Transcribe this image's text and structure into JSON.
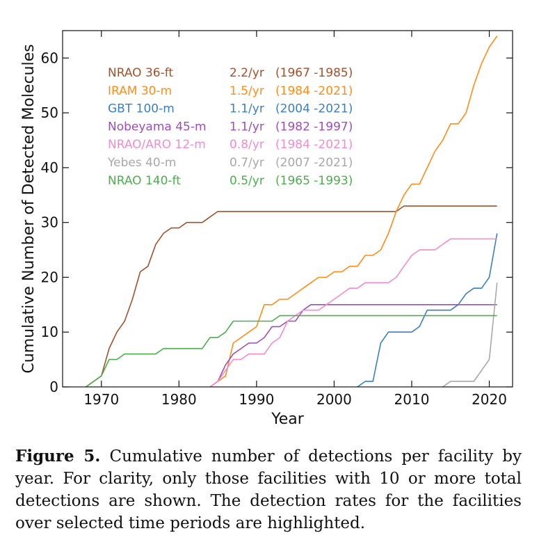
{
  "chart_data": {
    "type": "line",
    "xlabel": "Year",
    "ylabel": "Cumulative Number of Detected Molecules",
    "xlim": [
      1965,
      2023
    ],
    "ylim": [
      0,
      65
    ],
    "xticks": [
      1970,
      1980,
      1990,
      2000,
      2010,
      2020
    ],
    "yticks": [
      0,
      10,
      20,
      30,
      40,
      50,
      60
    ],
    "xtick_labels": [
      "1970",
      "1980",
      "1990",
      "2000",
      "2010",
      "2020"
    ],
    "ytick_labels": [
      "0",
      "10",
      "20",
      "30",
      "40",
      "50",
      "60"
    ],
    "grid": false,
    "legend_position": "top-left",
    "series": [
      {
        "name": "NRAO 36-ft",
        "rate": "2.2/yr",
        "period": "(1967 -1985)",
        "color": "#a0522d",
        "points": [
          [
            1968,
            0
          ],
          [
            1970,
            2
          ],
          [
            1971,
            7
          ],
          [
            1972,
            10
          ],
          [
            1973,
            12
          ],
          [
            1974,
            16
          ],
          [
            1975,
            21
          ],
          [
            1976,
            22
          ],
          [
            1977,
            26
          ],
          [
            1978,
            28
          ],
          [
            1979,
            29
          ],
          [
            1980,
            29
          ],
          [
            1981,
            30
          ],
          [
            1982,
            30
          ],
          [
            1983,
            30
          ],
          [
            1984,
            31
          ],
          [
            1985,
            32
          ],
          [
            2000,
            32
          ],
          [
            2008,
            32
          ],
          [
            2009,
            33
          ],
          [
            2021,
            33
          ]
        ]
      },
      {
        "name": "IRAM 30-m",
        "rate": "1.5/yr",
        "period": "(1984 -2021)",
        "color": "#ff8c1a",
        "points": [
          [
            1984,
            0
          ],
          [
            1985,
            1
          ],
          [
            1986,
            2
          ],
          [
            1987,
            8
          ],
          [
            1988,
            9
          ],
          [
            1989,
            10
          ],
          [
            1990,
            11
          ],
          [
            1991,
            15
          ],
          [
            1992,
            15
          ],
          [
            1993,
            16
          ],
          [
            1994,
            16
          ],
          [
            1995,
            17
          ],
          [
            1996,
            18
          ],
          [
            1997,
            19
          ],
          [
            1998,
            20
          ],
          [
            1999,
            20
          ],
          [
            2000,
            21
          ],
          [
            2001,
            21
          ],
          [
            2002,
            22
          ],
          [
            2003,
            22
          ],
          [
            2004,
            24
          ],
          [
            2005,
            24
          ],
          [
            2006,
            25
          ],
          [
            2007,
            28
          ],
          [
            2008,
            32
          ],
          [
            2009,
            35
          ],
          [
            2010,
            37
          ],
          [
            2011,
            37
          ],
          [
            2012,
            40
          ],
          [
            2013,
            43
          ],
          [
            2014,
            45
          ],
          [
            2015,
            48
          ],
          [
            2016,
            48
          ],
          [
            2017,
            50
          ],
          [
            2018,
            55
          ],
          [
            2019,
            59
          ],
          [
            2020,
            62
          ],
          [
            2021,
            64
          ]
        ]
      },
      {
        "name": "GBT 100-m",
        "rate": "1.1/yr",
        "period": "(2004 -2021)",
        "color": "#3a7fc1",
        "points": [
          [
            2003,
            0
          ],
          [
            2004,
            1
          ],
          [
            2005,
            1
          ],
          [
            2006,
            8
          ],
          [
            2007,
            10
          ],
          [
            2008,
            10
          ],
          [
            2009,
            10
          ],
          [
            2010,
            10
          ],
          [
            2011,
            11
          ],
          [
            2012,
            14
          ],
          [
            2013,
            14
          ],
          [
            2014,
            14
          ],
          [
            2015,
            14
          ],
          [
            2016,
            15
          ],
          [
            2017,
            17
          ],
          [
            2018,
            18
          ],
          [
            2019,
            18
          ],
          [
            2020,
            20
          ],
          [
            2021,
            28
          ]
        ]
      },
      {
        "name": "Nobeyama 45-m",
        "rate": "1.1/yr",
        "period": "(1982 -1997)",
        "color": "#9b4fb8",
        "points": [
          [
            1984,
            0
          ],
          [
            1985,
            1
          ],
          [
            1986,
            4
          ],
          [
            1987,
            6
          ],
          [
            1988,
            7
          ],
          [
            1989,
            8
          ],
          [
            1990,
            8
          ],
          [
            1991,
            9
          ],
          [
            1992,
            11
          ],
          [
            1993,
            11
          ],
          [
            1994,
            12
          ],
          [
            1995,
            12
          ],
          [
            1996,
            14
          ],
          [
            1997,
            15
          ],
          [
            2000,
            15
          ],
          [
            2010,
            15
          ],
          [
            2021,
            15
          ]
        ]
      },
      {
        "name": "NRAO/ARO 12-m",
        "rate": "0.8/yr",
        "period": "(1984 -2021)",
        "color": "#f08ccf",
        "points": [
          [
            1984,
            0
          ],
          [
            1985,
            1
          ],
          [
            1986,
            3
          ],
          [
            1987,
            5
          ],
          [
            1988,
            5
          ],
          [
            1989,
            6
          ],
          [
            1990,
            6
          ],
          [
            1991,
            6
          ],
          [
            1992,
            8
          ],
          [
            1993,
            9
          ],
          [
            1994,
            12
          ],
          [
            1995,
            13
          ],
          [
            1996,
            14
          ],
          [
            1997,
            14
          ],
          [
            1998,
            14
          ],
          [
            1999,
            15
          ],
          [
            2000,
            16
          ],
          [
            2001,
            17
          ],
          [
            2002,
            18
          ],
          [
            2003,
            18
          ],
          [
            2004,
            19
          ],
          [
            2005,
            19
          ],
          [
            2006,
            19
          ],
          [
            2007,
            19
          ],
          [
            2008,
            20
          ],
          [
            2009,
            22
          ],
          [
            2010,
            24
          ],
          [
            2011,
            25
          ],
          [
            2012,
            25
          ],
          [
            2013,
            25
          ],
          [
            2014,
            26
          ],
          [
            2015,
            27
          ],
          [
            2016,
            27
          ],
          [
            2017,
            27
          ],
          [
            2018,
            27
          ],
          [
            2019,
            27
          ],
          [
            2020,
            27
          ],
          [
            2021,
            27
          ]
        ]
      },
      {
        "name": "Yebes 40-m",
        "rate": "0.7/yr",
        "period": "(2007 -2021)",
        "color": "#a8a8a8",
        "points": [
          [
            2014,
            0
          ],
          [
            2015,
            1
          ],
          [
            2016,
            1
          ],
          [
            2017,
            1
          ],
          [
            2018,
            1
          ],
          [
            2019,
            3
          ],
          [
            2020,
            5
          ],
          [
            2021,
            19
          ]
        ]
      },
      {
        "name": "NRAO 140-ft",
        "rate": "0.5/yr",
        "period": "(1965 -1993)",
        "color": "#4cae4c",
        "points": [
          [
            1968,
            0
          ],
          [
            1969,
            1
          ],
          [
            1970,
            2
          ],
          [
            1971,
            5
          ],
          [
            1972,
            5
          ],
          [
            1973,
            6
          ],
          [
            1974,
            6
          ],
          [
            1975,
            6
          ],
          [
            1976,
            6
          ],
          [
            1977,
            6
          ],
          [
            1978,
            7
          ],
          [
            1979,
            7
          ],
          [
            1980,
            7
          ],
          [
            1981,
            7
          ],
          [
            1982,
            7
          ],
          [
            1983,
            7
          ],
          [
            1984,
            9
          ],
          [
            1985,
            9
          ],
          [
            1986,
            10
          ],
          [
            1987,
            12
          ],
          [
            1988,
            12
          ],
          [
            1989,
            12
          ],
          [
            1990,
            12
          ],
          [
            1991,
            12
          ],
          [
            1992,
            12
          ],
          [
            1993,
            13
          ],
          [
            2000,
            13
          ],
          [
            2010,
            13
          ],
          [
            2021,
            13
          ]
        ]
      }
    ]
  },
  "caption": {
    "label": "Figure 5.",
    "text": " Cumulative number of detections per facility by year. For clarity, only those facilities with 10 or more total detections are shown. The detection rates for the facilities over selected time periods are highlighted."
  }
}
